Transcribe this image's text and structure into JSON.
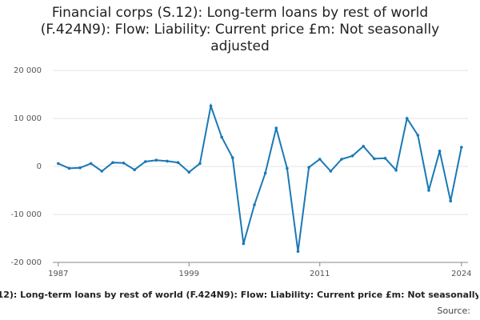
{
  "chart_data": {
    "type": "line",
    "title": "Financial corps (S.12): Long-term loans by rest of world (F.424N9): Flow: Liability: Current price £m: Not seasonally adjusted",
    "source": "Source:",
    "x": [
      1987,
      1988,
      1989,
      1990,
      1991,
      1992,
      1993,
      1994,
      1995,
      1996,
      1997,
      1998,
      1999,
      2000,
      2001,
      2002,
      2003,
      2004,
      2005,
      2006,
      2007,
      2008,
      2009,
      2010,
      2011,
      2012,
      2013,
      2014,
      2015,
      2016,
      2017,
      2018,
      2019,
      2020,
      2021,
      2022,
      2023,
      2024
    ],
    "series": [
      {
        "name": "F.424N9",
        "color": "#1a79b5",
        "values": [
          600,
          -400,
          -300,
          600,
          -1000,
          800,
          700,
          -700,
          1000,
          1300,
          1100,
          800,
          -1200,
          600,
          12600,
          6100,
          1800,
          -16100,
          -8000,
          -1400,
          8000,
          -400,
          -17700,
          -200,
          1500,
          -1000,
          1500,
          2200,
          4200,
          1600,
          1700,
          -800,
          10000,
          6500,
          -5000,
          3200,
          -7200,
          4000
        ]
      }
    ],
    "xlim": [
      1986.5,
      2024.6
    ],
    "xticks": [
      1987,
      1999,
      2011,
      2024
    ],
    "ylim": [
      -20000,
      20000
    ],
    "yticks": [
      {
        "value": -20000,
        "label": "-20 000"
      },
      {
        "value": -10000,
        "label": "-10 000"
      },
      0,
      {
        "value": 10000,
        "label": "10 000"
      },
      {
        "value": 20000,
        "label": "20 000"
      }
    ],
    "grid": true
  }
}
